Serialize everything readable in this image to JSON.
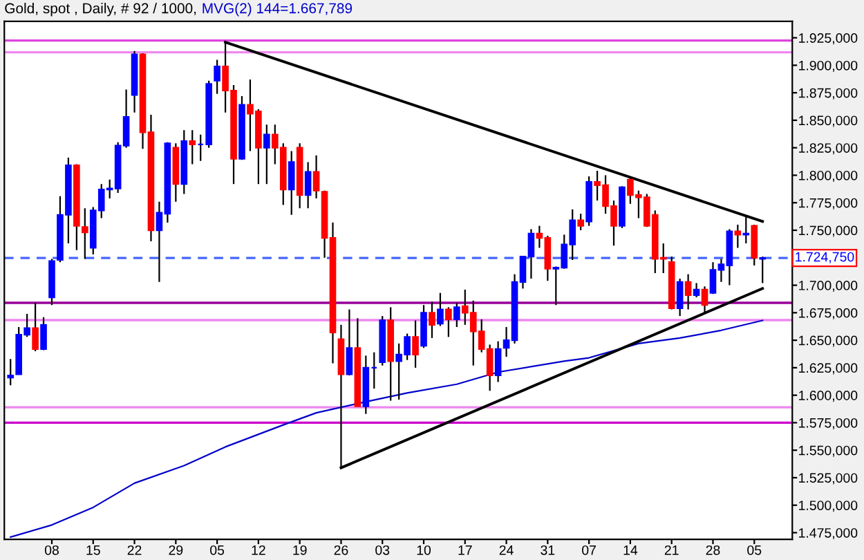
{
  "chart_data": {
    "type": "candlestick",
    "title": "Gold, spot , Daily, # 92 / 1000,",
    "categories": [
      null,
      null,
      null,
      null,
      null,
      "08",
      null,
      null,
      null,
      null,
      "15",
      null,
      null,
      null,
      null,
      "22",
      null,
      null,
      null,
      null,
      "29",
      null,
      null,
      null,
      null,
      "05",
      null,
      null,
      null,
      null,
      "12",
      null,
      null,
      null,
      null,
      "19",
      null,
      null,
      null,
      null,
      "26",
      null,
      null,
      null,
      null,
      "03",
      null,
      null,
      null,
      null,
      "10",
      null,
      null,
      null,
      null,
      "17",
      null,
      null,
      null,
      null,
      "24",
      null,
      null,
      null,
      null,
      "31",
      null,
      null,
      null,
      null,
      "07",
      null,
      null,
      null,
      null,
      "14",
      null,
      null,
      null,
      null,
      "21",
      null,
      null,
      null,
      null,
      "28",
      null,
      null,
      null,
      null,
      "05",
      null
    ],
    "ohlc": [
      [
        1616,
        1633,
        1609,
        1618
      ],
      [
        1619,
        1662,
        1619,
        1655
      ],
      [
        1655,
        1674,
        1653,
        1661
      ],
      [
        1661,
        1684,
        1640,
        1642
      ],
      [
        1642,
        1671,
        1641,
        1664
      ],
      [
        1689,
        1724,
        1682,
        1722
      ],
      [
        1723,
        1781,
        1721,
        1764
      ],
      [
        1764,
        1816,
        1738,
        1809
      ],
      [
        1809,
        1810,
        1732,
        1754
      ],
      [
        1753,
        1770,
        1724,
        1748
      ],
      [
        1734,
        1771,
        1728,
        1768
      ],
      [
        1768,
        1792,
        1761,
        1787
      ],
      [
        1787,
        1796,
        1779,
        1788
      ],
      [
        1788,
        1830,
        1784,
        1827
      ],
      [
        1827,
        1878,
        1825,
        1853
      ],
      [
        1873,
        1913,
        1857,
        1910
      ],
      [
        1910,
        1911,
        1824,
        1839
      ],
      [
        1839,
        1855,
        1740,
        1750
      ],
      [
        1750,
        1776,
        1703,
        1766
      ],
      [
        1765,
        1830,
        1757,
        1829
      ],
      [
        1825,
        1829,
        1776,
        1792
      ],
      [
        1792,
        1841,
        1783,
        1831
      ],
      [
        1831,
        1841,
        1810,
        1828
      ],
      [
        1828,
        1837,
        1813,
        1828
      ],
      [
        1828,
        1886,
        1825,
        1883
      ],
      [
        1886,
        1905,
        1874,
        1899
      ],
      [
        1899,
        1921,
        1857,
        1877
      ],
      [
        1877,
        1882,
        1792,
        1815
      ],
      [
        1815,
        1872,
        1814,
        1864
      ],
      [
        1864,
        1887,
        1822,
        1856
      ],
      [
        1858,
        1860,
        1792,
        1825
      ],
      [
        1825,
        1846,
        1792,
        1837
      ],
      [
        1837,
        1846,
        1810,
        1825
      ],
      [
        1825,
        1829,
        1773,
        1787
      ],
      [
        1787,
        1822,
        1764,
        1812
      ],
      [
        1825,
        1829,
        1770,
        1782
      ],
      [
        1782,
        1812,
        1770,
        1803
      ],
      [
        1803,
        1818,
        1779,
        1786
      ],
      [
        1785,
        1786,
        1725,
        1743
      ],
      [
        1743,
        1757,
        1629,
        1657
      ],
      [
        1651,
        1664,
        1534,
        1619
      ],
      [
        1619,
        1678,
        1618,
        1643
      ],
      [
        1643,
        1670,
        1590,
        1590
      ],
      [
        1590,
        1636,
        1583,
        1625
      ],
      [
        1625,
        1639,
        1606,
        1625
      ],
      [
        1630,
        1672,
        1627,
        1668
      ],
      [
        1668,
        1680,
        1595,
        1631
      ],
      [
        1631,
        1647,
        1596,
        1637
      ],
      [
        1637,
        1656,
        1632,
        1653
      ],
      [
        1653,
        1668,
        1625,
        1637
      ],
      [
        1645,
        1682,
        1643,
        1675
      ],
      [
        1675,
        1685,
        1652,
        1664
      ],
      [
        1665,
        1693,
        1663,
        1678
      ],
      [
        1678,
        1680,
        1653,
        1669
      ],
      [
        1669,
        1684,
        1662,
        1680
      ],
      [
        1681,
        1696,
        1664,
        1675
      ],
      [
        1675,
        1686,
        1627,
        1658
      ],
      [
        1658,
        1669,
        1639,
        1642
      ],
      [
        1642,
        1646,
        1604,
        1618
      ],
      [
        1618,
        1649,
        1612,
        1642
      ],
      [
        1643,
        1662,
        1635,
        1650
      ],
      [
        1650,
        1710,
        1647,
        1703
      ],
      [
        1703,
        1726,
        1697,
        1726
      ],
      [
        1726,
        1751,
        1706,
        1747
      ],
      [
        1747,
        1754,
        1734,
        1743
      ],
      [
        1743,
        1745,
        1704,
        1715
      ],
      [
        1715,
        1717,
        1682,
        1716
      ],
      [
        1716,
        1746,
        1715,
        1737
      ],
      [
        1737,
        1769,
        1723,
        1759
      ],
      [
        1759,
        1765,
        1750,
        1754
      ],
      [
        1758,
        1799,
        1754,
        1794
      ],
      [
        1794,
        1804,
        1777,
        1791
      ],
      [
        1791,
        1800,
        1765,
        1772
      ],
      [
        1772,
        1777,
        1736,
        1754
      ],
      [
        1754,
        1790,
        1752,
        1789
      ],
      [
        1796,
        1798,
        1774,
        1782
      ],
      [
        1782,
        1786,
        1761,
        1780
      ],
      [
        1780,
        1783,
        1753,
        1754
      ],
      [
        1764,
        1768,
        1711,
        1724
      ],
      [
        1725,
        1738,
        1711,
        1724
      ],
      [
        1721,
        1726,
        1678,
        1679
      ],
      [
        1679,
        1706,
        1672,
        1703
      ],
      [
        1703,
        1710,
        1678,
        1691
      ],
      [
        1691,
        1702,
        1689,
        1696
      ],
      [
        1696,
        1699,
        1674,
        1682
      ],
      [
        1693,
        1721,
        1692,
        1714
      ],
      [
        1714,
        1724,
        1703,
        1719
      ],
      [
        1718,
        1751,
        1700,
        1749
      ],
      [
        1749,
        1755,
        1734,
        1746
      ],
      [
        1746,
        1762,
        1738,
        1747
      ],
      [
        1754,
        1755,
        1718,
        1725
      ],
      [
        1724,
        1726,
        1702,
        1724.75
      ]
    ],
    "colors": [
      "#0000ff",
      "#0000ff",
      "#0000ff",
      "#ff0000",
      "#0000ff",
      "#0000ff",
      "#0000ff",
      "#0000ff",
      "#ff0000",
      "#ff0000",
      "#0000ff",
      "#0000ff",
      "#0000ff",
      "#0000ff",
      "#0000ff",
      "#0000ff",
      "#ff0000",
      "#ff0000",
      "#0000ff",
      "#0000ff",
      "#ff0000",
      "#0000ff",
      "#ff0000",
      "#0000ff",
      "#0000ff",
      "#0000ff",
      "#ff0000",
      "#ff0000",
      "#0000ff",
      "#ff0000",
      "#ff0000",
      "#0000ff",
      "#ff0000",
      "#ff0000",
      "#0000ff",
      "#ff0000",
      "#0000ff",
      "#ff0000",
      "#ff0000",
      "#ff0000",
      "#ff0000",
      "#0000ff",
      "#ff0000",
      "#0000ff",
      "#0000ff",
      "#0000ff",
      "#ff0000",
      "#0000ff",
      "#0000ff",
      "#ff0000",
      "#0000ff",
      "#ff0000",
      "#0000ff",
      "#ff0000",
      "#0000ff",
      "#ff0000",
      "#ff0000",
      "#ff0000",
      "#ff0000",
      "#0000ff",
      "#0000ff",
      "#0000ff",
      "#0000ff",
      "#0000ff",
      "#ff0000",
      "#ff0000",
      "#0000ff",
      "#0000ff",
      "#0000ff",
      "#ff0000",
      "#0000ff",
      "#ff0000",
      "#ff0000",
      "#ff0000",
      "#0000ff",
      "#ff0000",
      "#ff0000",
      "#ff0000",
      "#ff0000",
      "#ff0000",
      "#ff0000",
      "#0000ff",
      "#ff0000",
      "#0000ff",
      "#ff0000",
      "#0000ff",
      "#0000ff",
      "#0000ff",
      "#ff0000",
      "#0000ff",
      "#ff0000",
      "#0000ff"
    ],
    "series": [
      {
        "name": "MVG(2) 144=1.667,789",
        "type": "line",
        "color": "#0000cc",
        "values": [
          1471,
          null,
          null,
          null,
          null,
          1482,
          null,
          null,
          null,
          null,
          1498,
          null,
          null,
          null,
          null,
          1520,
          null,
          null,
          null,
          null,
          null,
          1536,
          null,
          null,
          null,
          null,
          1553,
          null,
          null,
          null,
          null,
          null,
          null,
          1573,
          null,
          null,
          null,
          1584,
          null,
          null,
          null,
          null,
          null,
          1594,
          null,
          null,
          null,
          null,
          1602,
          null,
          null,
          null,
          null,
          null,
          1610,
          null,
          null,
          null,
          null,
          1621,
          null,
          null,
          null,
          null,
          null,
          null,
          null,
          1631,
          null,
          null,
          1634,
          null,
          null,
          null,
          null,
          null,
          1647,
          null,
          null,
          null,
          null,
          1652,
          null,
          null,
          null,
          null,
          1659,
          null,
          null,
          null,
          null,
          1668
        ]
      },
      {
        "type": "line",
        "color": "#000000",
        "values": [
          null,
          null,
          null,
          null,
          null,
          null,
          null,
          null,
          null,
          null,
          null,
          null,
          null,
          null,
          null,
          null,
          null,
          null,
          null,
          null,
          null,
          null,
          null,
          null,
          null,
          null,
          1921,
          null,
          null,
          null,
          null,
          null,
          null,
          null,
          null,
          null,
          null,
          null,
          null,
          null,
          null,
          null,
          null,
          null,
          null,
          null,
          null,
          null,
          null,
          null,
          null,
          null,
          null,
          null,
          null,
          null,
          null,
          null,
          null,
          null,
          null,
          null,
          null,
          null,
          null,
          null,
          null,
          null,
          null,
          null,
          null,
          null,
          null,
          null,
          null,
          null,
          null,
          null,
          null,
          null,
          null,
          null,
          null,
          null,
          null,
          null,
          null,
          null,
          null,
          null,
          null,
          1758
        ]
      },
      {
        "type": "line",
        "color": "#000000",
        "values": [
          null,
          null,
          null,
          null,
          null,
          null,
          null,
          null,
          null,
          null,
          null,
          null,
          null,
          null,
          null,
          null,
          null,
          null,
          null,
          null,
          null,
          null,
          null,
          null,
          null,
          null,
          null,
          null,
          null,
          null,
          null,
          null,
          null,
          null,
          null,
          null,
          null,
          null,
          null,
          null,
          1534,
          null,
          null,
          null,
          null,
          null,
          null,
          null,
          null,
          null,
          null,
          null,
          null,
          null,
          null,
          null,
          null,
          null,
          null,
          null,
          null,
          null,
          null,
          null,
          null,
          null,
          null,
          null,
          null,
          null,
          null,
          null,
          null,
          null,
          null,
          null,
          null,
          null,
          null,
          null,
          null,
          null,
          null,
          null,
          null,
          null,
          null,
          null,
          null,
          null,
          null,
          1697
        ]
      }
    ],
    "ref_lines": [
      {
        "axis": "y",
        "value": 1922.5,
        "color": "#dd44dd"
      },
      {
        "axis": "y",
        "value": 1911.8,
        "color": "#ee88ee"
      },
      {
        "axis": "y",
        "value": 1684,
        "color": "#990099"
      },
      {
        "axis": "y",
        "value": 1668.3,
        "color": "#ee88ee"
      },
      {
        "axis": "y",
        "value": 1589,
        "color": "#ee88ee"
      },
      {
        "axis": "y",
        "value": 1575,
        "color": "#cc00cc"
      },
      {
        "axis": "y",
        "value": 1724.75,
        "label": "1.724,750",
        "color": "#4466ff",
        "line_style": "dashed"
      }
    ],
    "ylim": [
      1469,
      1940
    ],
    "yticks": [
      {
        "value": 1475,
        "label": "1.475,000"
      },
      {
        "value": 1500,
        "label": "1.500,000"
      },
      {
        "value": 1525,
        "label": "1.525,000"
      },
      {
        "value": 1550,
        "label": "1.550,000"
      },
      {
        "value": 1575,
        "label": "1.575,000"
      },
      {
        "value": 1600,
        "label": "1.600,000"
      },
      {
        "value": 1625,
        "label": "1.625,000"
      },
      {
        "value": 1650,
        "label": "1.650,000"
      },
      {
        "value": 1675,
        "label": "1.675,000"
      },
      {
        "value": 1700,
        "label": "1.700,000"
      },
      {
        "value": 1725,
        "label": null
      },
      {
        "value": 1750,
        "label": "1.750,000"
      },
      {
        "value": 1775,
        "label": "1.775,000"
      },
      {
        "value": 1800,
        "label": "1.800,000"
      },
      {
        "value": 1825,
        "label": "1.825,000"
      },
      {
        "value": 1850,
        "label": "1.850,000"
      },
      {
        "value": 1875,
        "label": "1.875,000"
      },
      {
        "value": 1900,
        "label": "1.900,000"
      },
      {
        "value": 1925,
        "label": "1.925,000"
      }
    ],
    "grid": false
  }
}
